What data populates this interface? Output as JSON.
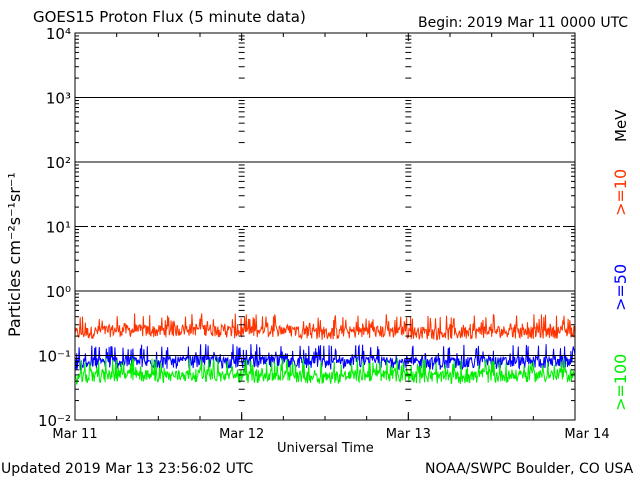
{
  "header": {
    "title": "GOES15 Proton Flux (5 minute data)",
    "begin": "Begin: 2019 Mar 11 0000 UTC"
  },
  "footer": {
    "updated": "Updated 2019 Mar 13 23:56:02 UTC",
    "credit": "NOAA/SWPC Boulder, CO USA"
  },
  "legend": {
    "unit": "MeV",
    "items": [
      {
        "label": ">=10",
        "color": "#ff3300"
      },
      {
        "label": ">=50",
        "color": "#0000ff"
      },
      {
        "label": ">=100",
        "color": "#00ee00"
      }
    ]
  },
  "chart_data": {
    "type": "line",
    "title": "GOES15 Proton Flux (5 minute data)",
    "xlabel": "Universal Time",
    "ylabel": "Particles cm⁻²s⁻¹sr⁻¹",
    "yscale": "log",
    "ylim": [
      0.01,
      10000
    ],
    "xlim": [
      "2019-03-11 00:00",
      "2019-03-14 00:00"
    ],
    "x_ticks": [
      "Mar 11",
      "Mar 12",
      "Mar 13",
      "Mar 14"
    ],
    "y_ticks": [
      {
        "value": 0.01,
        "label": "10⁻²"
      },
      {
        "value": 0.1,
        "label": "10⁻¹"
      },
      {
        "value": 1,
        "label": "10⁰"
      },
      {
        "value": 10,
        "label": "10¹"
      },
      {
        "value": 100,
        "label": "10²"
      },
      {
        "value": 1000,
        "label": "10³"
      },
      {
        "value": 10000,
        "label": "10⁴"
      }
    ],
    "reference_lines": [
      {
        "value": 10,
        "style": "dashed"
      },
      {
        "value": 100,
        "style": "solid"
      },
      {
        "value": 1000,
        "style": "solid"
      },
      {
        "value": 1,
        "style": "solid"
      },
      {
        "value": 0.1,
        "style": "solid"
      }
    ],
    "grid": false,
    "series": [
      {
        "name": ">=10 MeV",
        "color": "#ff3300",
        "x": [
          "2019-03-11 00:00",
          "2019-03-11 06:00",
          "2019-03-11 12:00",
          "2019-03-11 18:00",
          "2019-03-12 00:00",
          "2019-03-12 06:00",
          "2019-03-12 12:00",
          "2019-03-12 18:00",
          "2019-03-13 00:00",
          "2019-03-13 06:00",
          "2019-03-13 12:00",
          "2019-03-13 18:00",
          "2019-03-14 00:00"
        ],
        "values": [
          0.22,
          0.25,
          0.24,
          0.26,
          0.23,
          0.25,
          0.22,
          0.24,
          0.23,
          0.22,
          0.24,
          0.23,
          0.24
        ],
        "min": 0.15,
        "max": 0.45
      },
      {
        "name": ">=50 MeV",
        "color": "#0000ff",
        "x": [
          "2019-03-11 00:00",
          "2019-03-11 06:00",
          "2019-03-11 12:00",
          "2019-03-11 18:00",
          "2019-03-12 00:00",
          "2019-03-12 06:00",
          "2019-03-12 12:00",
          "2019-03-12 18:00",
          "2019-03-13 00:00",
          "2019-03-13 06:00",
          "2019-03-13 12:00",
          "2019-03-13 18:00",
          "2019-03-14 00:00"
        ],
        "values": [
          0.075,
          0.08,
          0.078,
          0.082,
          0.08,
          0.079,
          0.077,
          0.08,
          0.078,
          0.076,
          0.079,
          0.08,
          0.08
        ],
        "min": 0.05,
        "max": 0.15
      },
      {
        "name": ">=100 MeV",
        "color": "#00ee00",
        "x": [
          "2019-03-11 00:00",
          "2019-03-11 06:00",
          "2019-03-11 12:00",
          "2019-03-11 18:00",
          "2019-03-12 00:00",
          "2019-03-12 06:00",
          "2019-03-12 12:00",
          "2019-03-12 18:00",
          "2019-03-13 00:00",
          "2019-03-13 06:00",
          "2019-03-13 12:00",
          "2019-03-13 18:00",
          "2019-03-14 00:00"
        ],
        "values": [
          0.045,
          0.05,
          0.048,
          0.05,
          0.047,
          0.049,
          0.046,
          0.05,
          0.048,
          0.046,
          0.048,
          0.049,
          0.05
        ],
        "min": 0.025,
        "max": 0.1
      }
    ]
  }
}
